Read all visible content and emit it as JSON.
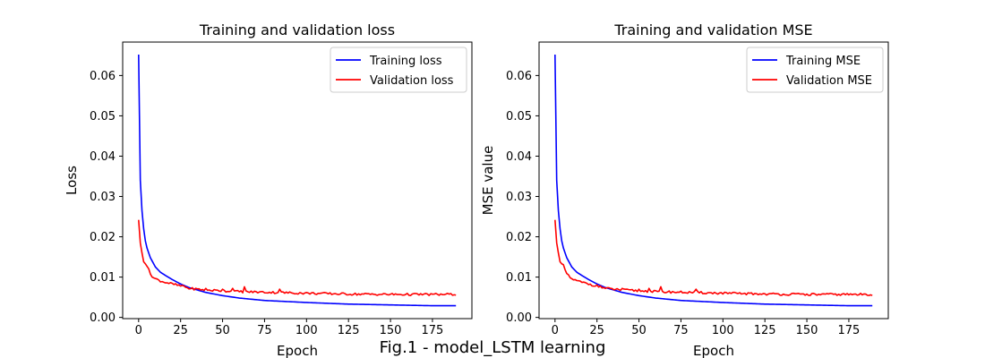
{
  "figure": {
    "suptitle": "Fig.1 - model_LSTM learning"
  },
  "chart_data": [
    {
      "type": "line",
      "title": "Training and validation loss",
      "xlabel": "Epoch",
      "ylabel": "Loss",
      "xlim": [
        -9.5,
        198.5
      ],
      "ylim": [
        -0.0003,
        0.0683
      ],
      "xticks": [
        0,
        25,
        50,
        75,
        100,
        125,
        150,
        175
      ],
      "yticks": [
        0.0,
        0.01,
        0.02,
        0.03,
        0.04,
        0.05,
        0.06
      ],
      "ytick_labels": [
        "0.00",
        "0.01",
        "0.02",
        "0.03",
        "0.04",
        "0.05",
        "0.06"
      ],
      "grid": false,
      "legend": "top-right",
      "series": [
        {
          "name": "Training loss",
          "color": "#0000ff",
          "style": "training",
          "keypoints": [
            [
              0,
              0.0652
            ],
            [
              1,
              0.034
            ],
            [
              2,
              0.0265
            ],
            [
              3,
              0.022
            ],
            [
              4,
              0.019
            ],
            [
              5,
              0.0172
            ],
            [
              7,
              0.0148
            ],
            [
              10,
              0.0125
            ],
            [
              13,
              0.0112
            ],
            [
              16,
              0.0104
            ],
            [
              20,
              0.0094
            ],
            [
              25,
              0.0083
            ],
            [
              30,
              0.0074
            ],
            [
              40,
              0.0062
            ],
            [
              50,
              0.0054
            ],
            [
              60,
              0.0048
            ],
            [
              75,
              0.0042
            ],
            [
              100,
              0.0037
            ],
            [
              125,
              0.0033
            ],
            [
              150,
              0.0031
            ],
            [
              175,
              0.0029
            ],
            [
              189,
              0.0029
            ]
          ]
        },
        {
          "name": "Validation loss",
          "color": "#ff0000",
          "style": "validation",
          "keypoints": [
            [
              0,
              0.0242
            ],
            [
              1,
              0.0185
            ],
            [
              2,
              0.016
            ],
            [
              3,
              0.0138
            ],
            [
              5,
              0.0128
            ],
            [
              7,
              0.0108
            ],
            [
              9,
              0.0098
            ],
            [
              12,
              0.0092
            ],
            [
              15,
              0.0088
            ],
            [
              20,
              0.0083
            ],
            [
              25,
              0.0078
            ],
            [
              30,
              0.0072
            ],
            [
              40,
              0.0068
            ],
            [
              60,
              0.0064
            ],
            [
              80,
              0.0062
            ],
            [
              100,
              0.006
            ],
            [
              125,
              0.0058
            ],
            [
              150,
              0.0057
            ],
            [
              189,
              0.0057
            ]
          ],
          "spikes": [
            [
              27,
              0.0078
            ],
            [
              40,
              0.0072
            ],
            [
              50,
              0.007
            ],
            [
              56,
              0.0072
            ],
            [
              63,
              0.0076
            ],
            [
              84,
              0.007
            ]
          ]
        }
      ]
    },
    {
      "type": "line",
      "title": "Training and validation MSE",
      "xlabel": "Epoch",
      "ylabel": "MSE value",
      "xlim": [
        -9.5,
        198.5
      ],
      "ylim": [
        -0.0003,
        0.0683
      ],
      "xticks": [
        0,
        25,
        50,
        75,
        100,
        125,
        150,
        175
      ],
      "yticks": [
        0.0,
        0.01,
        0.02,
        0.03,
        0.04,
        0.05,
        0.06
      ],
      "ytick_labels": [
        "0.00",
        "0.01",
        "0.02",
        "0.03",
        "0.04",
        "0.05",
        "0.06"
      ],
      "grid": false,
      "legend": "top-right",
      "series": [
        {
          "name": "Training MSE",
          "color": "#0000ff",
          "style": "training",
          "keypoints": [
            [
              0,
              0.0652
            ],
            [
              1,
              0.034
            ],
            [
              2,
              0.0265
            ],
            [
              3,
              0.022
            ],
            [
              4,
              0.019
            ],
            [
              5,
              0.0172
            ],
            [
              7,
              0.0148
            ],
            [
              10,
              0.0125
            ],
            [
              13,
              0.0112
            ],
            [
              16,
              0.0104
            ],
            [
              20,
              0.0094
            ],
            [
              25,
              0.0083
            ],
            [
              30,
              0.0074
            ],
            [
              40,
              0.0062
            ],
            [
              50,
              0.0054
            ],
            [
              60,
              0.0048
            ],
            [
              75,
              0.0042
            ],
            [
              100,
              0.0037
            ],
            [
              125,
              0.0033
            ],
            [
              150,
              0.0031
            ],
            [
              175,
              0.0029
            ],
            [
              189,
              0.0029
            ]
          ]
        },
        {
          "name": "Validation MSE",
          "color": "#ff0000",
          "style": "validation",
          "keypoints": [
            [
              0,
              0.0242
            ],
            [
              1,
              0.0185
            ],
            [
              2,
              0.016
            ],
            [
              3,
              0.0138
            ],
            [
              5,
              0.0128
            ],
            [
              7,
              0.0108
            ],
            [
              9,
              0.0098
            ],
            [
              12,
              0.0092
            ],
            [
              15,
              0.0088
            ],
            [
              20,
              0.0083
            ],
            [
              25,
              0.0078
            ],
            [
              30,
              0.0072
            ],
            [
              40,
              0.0068
            ],
            [
              60,
              0.0064
            ],
            [
              80,
              0.0062
            ],
            [
              100,
              0.006
            ],
            [
              125,
              0.0058
            ],
            [
              150,
              0.0057
            ],
            [
              189,
              0.0057
            ]
          ],
          "spikes": [
            [
              27,
              0.0078
            ],
            [
              40,
              0.0072
            ],
            [
              50,
              0.007
            ],
            [
              56,
              0.0072
            ],
            [
              63,
              0.0076
            ],
            [
              84,
              0.007
            ]
          ]
        }
      ]
    }
  ]
}
